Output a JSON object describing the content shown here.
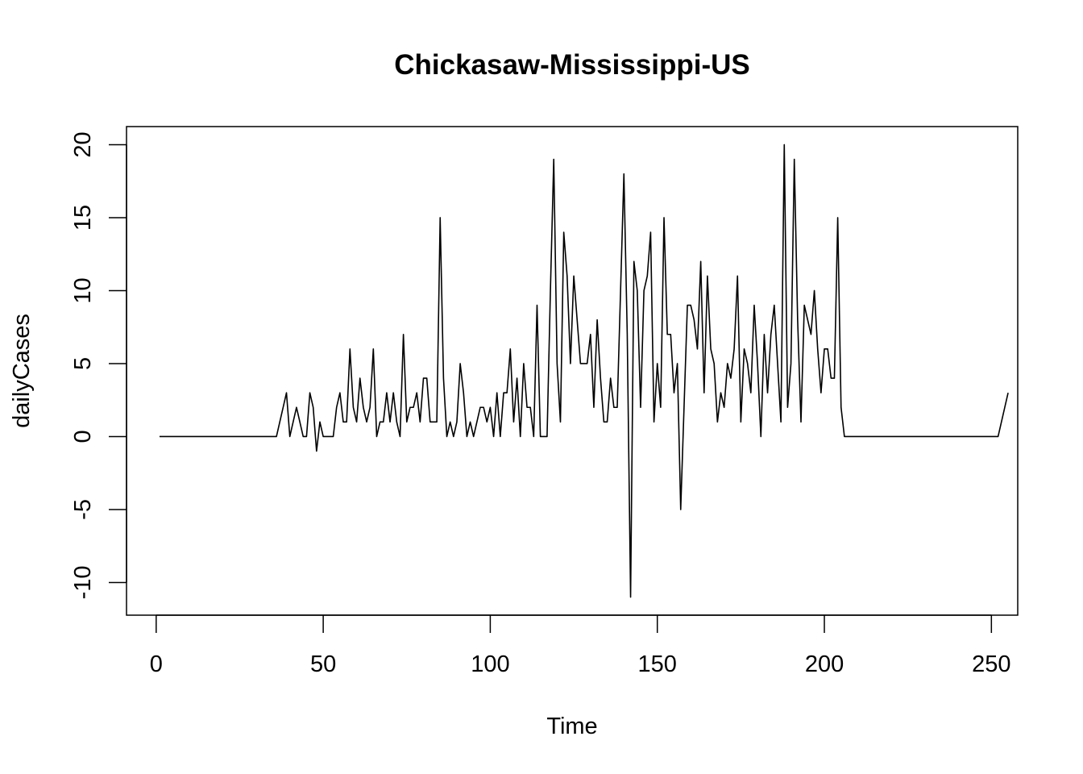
{
  "chart_data": {
    "type": "line",
    "title": "Chickasaw-Mississippi-US",
    "xlabel": "Time",
    "ylabel": "dailyCases",
    "xlim": [
      1,
      248
    ],
    "ylim": [
      -11,
      20
    ],
    "x_ticks": [
      0,
      50,
      100,
      150,
      200,
      250
    ],
    "y_ticks": [
      -10,
      -5,
      0,
      5,
      10,
      15,
      20
    ],
    "grid": false,
    "legend": "none",
    "line_color": "#000000",
    "series": [
      {
        "values": [
          0,
          0,
          0,
          0,
          0,
          0,
          0,
          0,
          0,
          0,
          0,
          0,
          0,
          0,
          0,
          0,
          0,
          0,
          0,
          0,
          0,
          0,
          0,
          0,
          0,
          0,
          0,
          0,
          0,
          0,
          0,
          0,
          0,
          0,
          0,
          0,
          1,
          2,
          3,
          0,
          1,
          2,
          1,
          0,
          0,
          3,
          2,
          -1,
          1,
          0,
          0,
          0,
          0,
          2,
          3,
          1,
          1,
          6,
          2,
          1,
          4,
          2,
          1,
          2,
          6,
          0,
          1,
          1,
          3,
          1,
          3,
          1,
          0,
          7,
          1,
          2,
          2,
          3,
          1,
          4,
          4,
          1,
          1,
          1,
          15,
          4,
          0,
          1,
          0,
          1,
          5,
          3,
          0,
          1,
          0,
          1,
          2,
          2,
          1,
          2,
          0,
          3,
          0,
          3,
          3,
          6,
          1,
          4,
          0,
          5,
          2,
          2,
          0,
          9,
          0,
          0,
          0,
          10,
          19,
          5,
          1,
          14,
          11,
          5,
          11,
          8,
          5,
          5,
          5,
          7,
          2,
          8,
          4,
          1,
          1,
          4,
          2,
          2,
          10,
          18,
          7,
          -11,
          12,
          10,
          2,
          10,
          11,
          14,
          1,
          5,
          2,
          15,
          7,
          7,
          3,
          5,
          -5,
          2,
          9,
          9,
          8,
          6,
          12,
          3,
          11,
          6,
          5,
          1,
          3,
          2,
          5,
          4,
          6,
          11,
          1,
          6,
          5,
          3,
          9,
          5,
          0,
          7,
          3,
          7,
          9,
          5,
          1,
          20,
          2,
          5,
          19,
          8,
          1,
          9,
          8,
          7,
          10,
          6,
          3,
          6,
          6,
          4,
          4,
          15,
          2,
          0,
          0,
          0,
          0,
          0,
          0,
          0,
          0,
          0,
          0,
          0,
          0,
          0,
          0,
          0,
          0,
          0,
          0,
          0,
          0,
          0,
          0,
          0,
          0,
          0,
          0,
          0,
          0,
          0,
          0,
          0,
          0,
          0,
          0,
          0,
          0,
          0,
          0,
          0,
          0,
          0,
          0,
          0,
          0,
          0,
          0,
          0,
          1,
          2,
          3
        ]
      }
    ]
  }
}
